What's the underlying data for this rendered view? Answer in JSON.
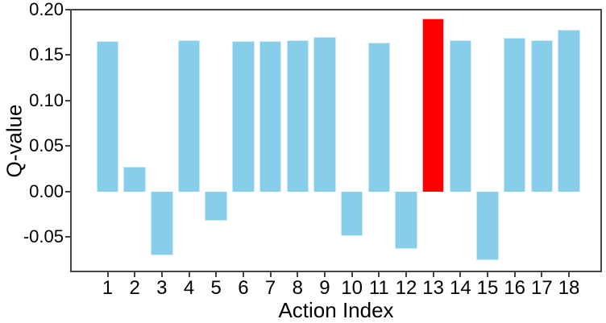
{
  "figure": {
    "background": "#ffffff",
    "frame_color": "#444444",
    "text_color": "#000000"
  },
  "chart_data": {
    "type": "bar",
    "title": "",
    "xlabel": "Action Index",
    "ylabel": "Q-value",
    "categories": [
      "1",
      "2",
      "3",
      "4",
      "5",
      "6",
      "7",
      "8",
      "9",
      "10",
      "11",
      "12",
      "13",
      "14",
      "15",
      "16",
      "17",
      "18"
    ],
    "values": [
      0.165,
      0.027,
      -0.07,
      0.166,
      -0.032,
      0.165,
      0.165,
      0.166,
      0.17,
      -0.049,
      0.164,
      -0.063,
      0.19,
      0.166,
      -0.076,
      0.169,
      0.166,
      0.178
    ],
    "highlight_index": 13,
    "colors": {
      "bar_default": "#87CEEB",
      "bar_default_edge": "#c9e9f6",
      "bar_highlight": "#FF0000",
      "bar_highlight_edge": "#ffb3b3"
    },
    "ylim": [
      -0.088,
      0.2
    ],
    "yticks": [
      0.2,
      0.15,
      0.1,
      0.05,
      0.0,
      -0.05
    ],
    "ytick_labels": [
      "0.20",
      "0.15",
      "0.10",
      "0.05",
      "0.00",
      "-0.05"
    ],
    "grid": false,
    "legend": null
  }
}
